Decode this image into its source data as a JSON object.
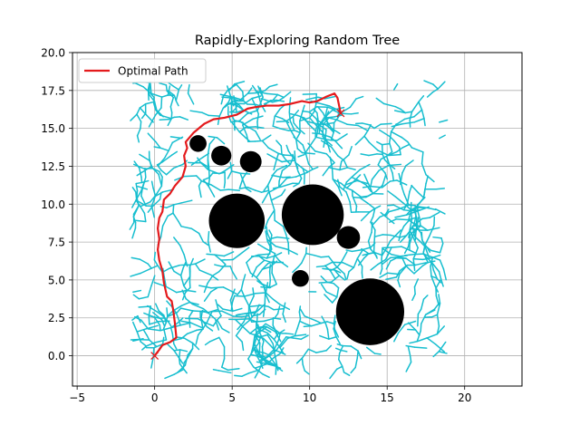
{
  "chart_data": {
    "type": "scatter",
    "title": "Rapidly-Exploring Random Tree",
    "xlabel": "",
    "ylabel": "",
    "xlim": [
      -5.3,
      23.7
    ],
    "ylim": [
      -2.0,
      20.0
    ],
    "xticks": [
      -5,
      0,
      5,
      10,
      15,
      20
    ],
    "yticks": [
      0.0,
      2.5,
      5.0,
      7.5,
      10.0,
      12.5,
      15.0,
      17.5,
      20.0
    ],
    "xtick_labels": [
      "−5",
      "0",
      "5",
      "10",
      "15",
      "20"
    ],
    "ytick_labels": [
      "0.0",
      "2.5",
      "5.0",
      "7.5",
      "10.0",
      "12.5",
      "15.0",
      "17.5",
      "20.0"
    ],
    "grid": true,
    "legend": {
      "position": "top-left",
      "entries": [
        {
          "label": "Optimal Path",
          "color": "#e41a1c"
        }
      ]
    },
    "colors": {
      "tree": "#17becf",
      "path": "#e41a1c",
      "obstacle": "#000000",
      "goal": "#e41a1c"
    },
    "start": [
      0,
      0
    ],
    "goal": [
      12,
      16
    ],
    "obstacles": [
      {
        "center": [
          2.8,
          14.0
        ],
        "radius": 0.55
      },
      {
        "center": [
          4.3,
          13.2
        ],
        "radius": 0.65
      },
      {
        "center": [
          6.2,
          12.8
        ],
        "radius": 0.7
      },
      {
        "center": [
          5.3,
          8.9
        ],
        "radius": 1.8
      },
      {
        "center": [
          10.2,
          9.3
        ],
        "radius": 2.0
      },
      {
        "center": [
          12.5,
          7.8
        ],
        "radius": 0.75
      },
      {
        "center": [
          9.4,
          5.1
        ],
        "radius": 0.55
      },
      {
        "center": [
          13.9,
          2.9
        ],
        "radius": 2.2
      }
    ],
    "optimal_path": [
      [
        0.0,
        0.0
      ],
      [
        0.3,
        0.4
      ],
      [
        0.5,
        0.7
      ],
      [
        1.0,
        0.9
      ],
      [
        1.4,
        1.2
      ],
      [
        1.3,
        2.2
      ],
      [
        1.2,
        3.0
      ],
      [
        1.1,
        3.6
      ],
      [
        0.8,
        3.9
      ],
      [
        0.6,
        4.8
      ],
      [
        0.5,
        5.6
      ],
      [
        0.3,
        6.3
      ],
      [
        0.2,
        7.0
      ],
      [
        0.3,
        7.7
      ],
      [
        0.2,
        8.4
      ],
      [
        0.3,
        9.1
      ],
      [
        0.5,
        9.5
      ],
      [
        0.6,
        10.3
      ],
      [
        1.0,
        10.7
      ],
      [
        1.3,
        11.2
      ],
      [
        1.8,
        11.8
      ],
      [
        2.0,
        12.5
      ],
      [
        1.9,
        13.2
      ],
      [
        2.1,
        13.7
      ],
      [
        2.0,
        14.1
      ],
      [
        2.5,
        14.7
      ],
      [
        3.2,
        15.3
      ],
      [
        3.8,
        15.6
      ],
      [
        4.5,
        15.7
      ],
      [
        5.3,
        15.9
      ],
      [
        6.0,
        16.3
      ],
      [
        6.5,
        16.4
      ],
      [
        7.2,
        16.5
      ],
      [
        8.0,
        16.5
      ],
      [
        8.7,
        16.6
      ],
      [
        9.5,
        16.8
      ],
      [
        10.0,
        16.7
      ],
      [
        10.5,
        16.8
      ],
      [
        11.1,
        17.1
      ],
      [
        11.6,
        17.3
      ],
      [
        11.8,
        17.0
      ],
      [
        12.0,
        16.0
      ]
    ]
  }
}
